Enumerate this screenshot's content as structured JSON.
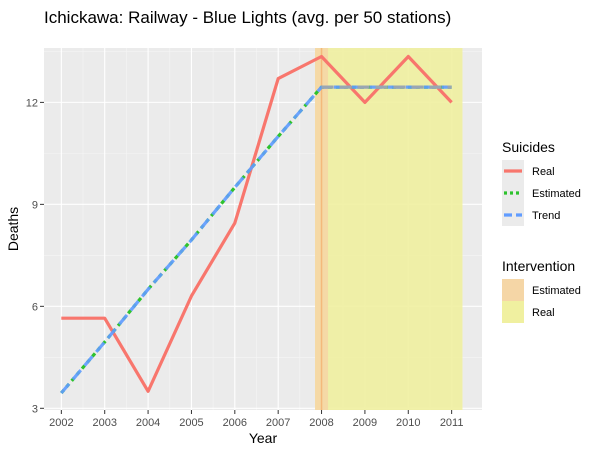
{
  "chart_data": {
    "type": "line",
    "title": "Ichickawa: Railway - Blue Lights (avg. per 50 stations)",
    "xlabel": "Year",
    "ylabel": "Deaths",
    "x": [
      2002,
      2003,
      2004,
      2005,
      2006,
      2007,
      2008,
      2009,
      2010,
      2011
    ],
    "x_tick_labels": [
      "2002",
      "2003",
      "2004",
      "2005",
      "2006",
      "2007",
      "2008",
      "2009",
      "2010",
      "2011"
    ],
    "xlim": [
      2001.6,
      2011.7
    ],
    "ylim": [
      2.95,
      13.6
    ],
    "y_ticks": [
      3,
      6,
      9,
      12
    ],
    "y_tick_labels": [
      "3",
      "6",
      "9",
      "12"
    ],
    "grid": true,
    "legend_placement": "right",
    "series": [
      {
        "name": "Real",
        "style": "solid",
        "color": "#f8766d",
        "values": [
          5.65,
          5.65,
          3.5,
          6.3,
          8.45,
          12.7,
          13.35,
          12.0,
          13.35,
          12.0
        ]
      },
      {
        "name": "Estimated",
        "style": "dotted",
        "color": "#2ec22e",
        "values": [
          3.45,
          4.95,
          6.5,
          7.95,
          9.5,
          11.0,
          12.45,
          12.45,
          12.45,
          12.45
        ]
      },
      {
        "name": "Trend",
        "style": "dashed",
        "color": "#619cff",
        "values": [
          3.45,
          4.95,
          6.5,
          7.95,
          9.5,
          11.0,
          12.45,
          12.45,
          12.45,
          12.45
        ]
      }
    ],
    "intervention_bands": [
      {
        "name": "Estimated",
        "from": 2007.85,
        "to": 2008.15,
        "color": "#f5d6a6"
      },
      {
        "name": "Real",
        "from": 2007.85,
        "to": 2011.25,
        "color": "#f0f0a0"
      }
    ],
    "legends": [
      {
        "title": "Suicides",
        "items": [
          "Real",
          "Estimated",
          "Trend"
        ]
      },
      {
        "title": "Intervention",
        "items": [
          "Estimated",
          "Real"
        ]
      }
    ]
  }
}
